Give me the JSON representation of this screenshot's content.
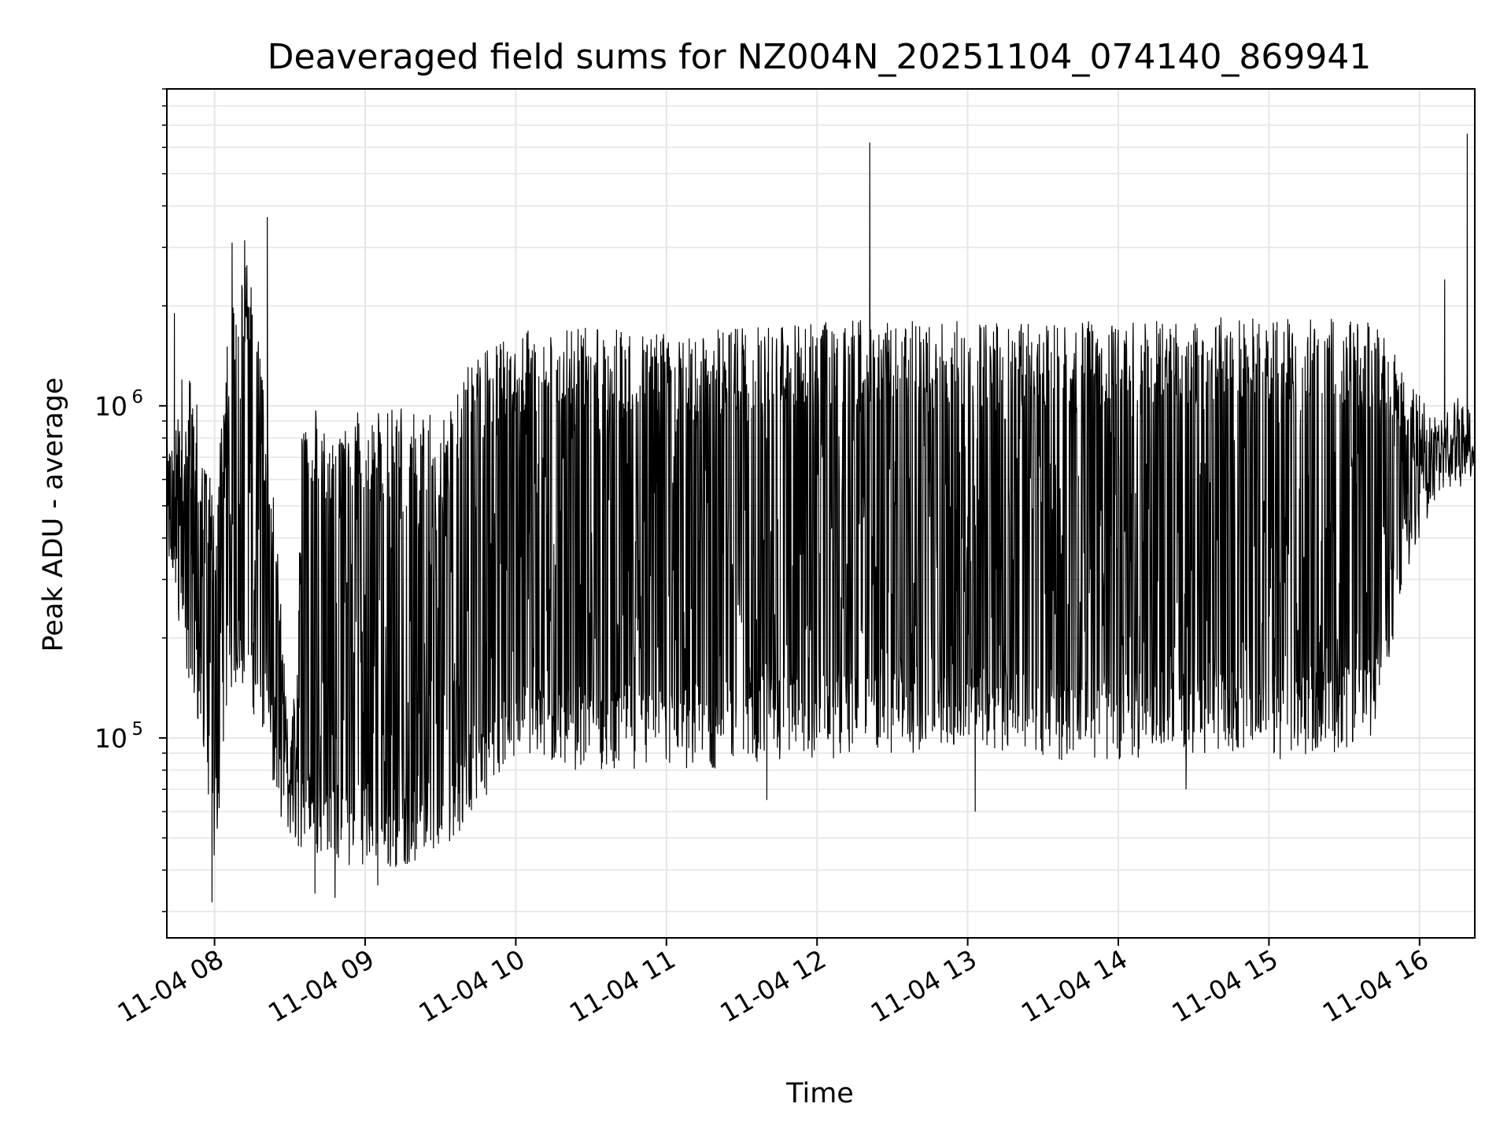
{
  "chart_data": {
    "type": "line",
    "title": "Deaveraged field sums for NZ004N_20251104_074140_869941",
    "xlabel": "Time",
    "ylabel": "Peak ADU - average",
    "yscale": "log",
    "ylim": [
      25000,
      9000000
    ],
    "xlim": [
      "11-04 07:41",
      "11-04 16:22"
    ],
    "grid": true,
    "legend": "none",
    "x_ticks": [
      {
        "value": "11-04 08:00",
        "label": "11-04 08"
      },
      {
        "value": "11-04 09:00",
        "label": "11-04 09"
      },
      {
        "value": "11-04 10:00",
        "label": "11-04 10"
      },
      {
        "value": "11-04 11:00",
        "label": "11-04 11"
      },
      {
        "value": "11-04 12:00",
        "label": "11-04 12"
      },
      {
        "value": "11-04 13:00",
        "label": "11-04 13"
      },
      {
        "value": "11-04 14:00",
        "label": "11-04 14"
      },
      {
        "value": "11-04 15:00",
        "label": "11-04 15"
      },
      {
        "value": "11-04 16:00",
        "label": "11-04 16"
      }
    ],
    "y_ticks": [
      {
        "value": 100000,
        "base": "10",
        "exp": "5"
      },
      {
        "value": 1000000,
        "base": "10",
        "exp": "6"
      }
    ],
    "line_color": "#000000",
    "series": [
      {
        "x": [
          "11-04 07:41",
          "11-04 07:45",
          "11-04 07:50",
          "11-04 07:55",
          "11-04 08:00",
          "11-04 08:05",
          "11-04 08:10",
          "11-04 08:15",
          "11-04 08:20",
          "11-04 08:25",
          "11-04 08:30",
          "11-04 08:35",
          "11-04 08:40",
          "11-04 08:45",
          "11-04 08:50",
          "11-04 08:55",
          "11-04 09:00",
          "11-04 09:10",
          "11-04 09:20",
          "11-04 09:30",
          "11-04 09:40",
          "11-04 09:50",
          "11-04 10:00",
          "11-04 10:20",
          "11-04 10:40",
          "11-04 11:00",
          "11-04 11:20",
          "11-04 11:40",
          "11-04 12:00",
          "11-04 12:20",
          "11-04 12:40",
          "11-04 13:00",
          "11-04 13:20",
          "11-04 13:40",
          "11-04 14:00",
          "11-04 14:20",
          "11-04 14:40",
          "11-04 15:00",
          "11-04 15:20",
          "11-04 15:40",
          "11-04 15:55",
          "11-04 16:05",
          "11-04 16:15",
          "11-04 16:22"
        ],
        "y_high": [
          800000,
          900000,
          1200000,
          900000,
          500000,
          1500000,
          3000000,
          2500000,
          1000000,
          400000,
          90000,
          900000,
          1000000,
          800000,
          900000,
          1000000,
          1000000,
          1000000,
          1000000,
          900000,
          1300000,
          1500000,
          1700000,
          1700000,
          1750000,
          1750000,
          1700000,
          1750000,
          1800000,
          1850000,
          1800000,
          1800000,
          1800000,
          1800000,
          1800000,
          1850000,
          1850000,
          1850000,
          1850000,
          1800000,
          1400000,
          900000,
          1000000,
          1000000
        ],
        "y_low": [
          300000,
          250000,
          120000,
          100000,
          40000,
          120000,
          150000,
          120000,
          100000,
          60000,
          50000,
          45000,
          45000,
          45000,
          42000,
          40000,
          42000,
          40000,
          42000,
          45000,
          55000,
          70000,
          85000,
          80000,
          80000,
          80000,
          80000,
          85000,
          85000,
          90000,
          90000,
          95000,
          90000,
          85000,
          85000,
          90000,
          90000,
          85000,
          90000,
          90000,
          300000,
          500000,
          600000,
          600000
        ],
        "spikes": [
          {
            "x": "11-04 07:44",
            "y": 1900000
          },
          {
            "x": "11-04 07:47",
            "y": 1200000
          },
          {
            "x": "11-04 07:59",
            "y": 32000
          },
          {
            "x": "11-04 08:07",
            "y": 3100000
          },
          {
            "x": "11-04 08:12",
            "y": 3150000
          },
          {
            "x": "11-04 08:21",
            "y": 3700000
          },
          {
            "x": "11-04 08:40",
            "y": 34000
          },
          {
            "x": "11-04 08:48",
            "y": 33000
          },
          {
            "x": "11-04 09:05",
            "y": 36000
          },
          {
            "x": "11-04 11:40",
            "y": 65000
          },
          {
            "x": "11-04 12:21",
            "y": 6200000
          },
          {
            "x": "11-04 13:03",
            "y": 60000
          },
          {
            "x": "11-04 14:27",
            "y": 70000
          },
          {
            "x": "11-04 16:10",
            "y": 2400000
          },
          {
            "x": "11-04 16:19",
            "y": 6600000
          }
        ]
      }
    ]
  }
}
